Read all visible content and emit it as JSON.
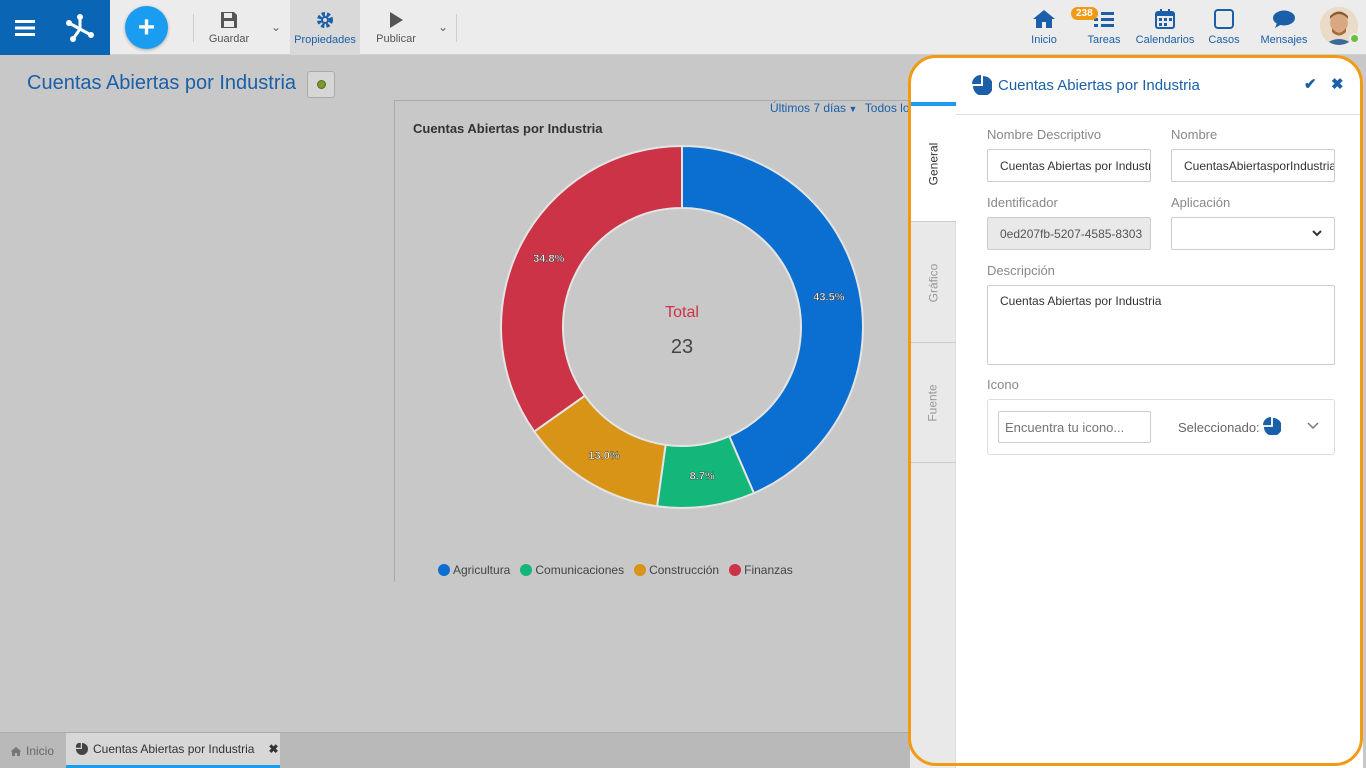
{
  "toolbar": {
    "save_label": "Guardar",
    "properties_label": "Propiedades",
    "publish_label": "Publicar"
  },
  "nav": {
    "home_label": "Inicio",
    "tasks_label": "Tareas",
    "tasks_badge": "238",
    "calendars_label": "Calendarios",
    "cases_label": "Casos",
    "messages_label": "Mensajes"
  },
  "page": {
    "title": "Cuentas Abiertas por Industria",
    "filter_period": "Últimos 7 días",
    "filter_scope": "Todos los"
  },
  "chart_data": {
    "type": "pie",
    "title": "Cuentas Abiertas por Industria",
    "center_label": "Total",
    "center_value": "23",
    "categories": [
      "Agricultura",
      "Comunicaciones",
      "Construcción",
      "Finanzas"
    ],
    "values": [
      43.5,
      8.7,
      13.0,
      34.8
    ],
    "value_labels": [
      "43.5%",
      "8.7%",
      "13.0%",
      "34.8%"
    ],
    "colors": [
      "#0a6fd0",
      "#13b77a",
      "#d79416",
      "#cc3347"
    ],
    "legend_position": "bottom"
  },
  "bottom_tabs": {
    "home_label": "Inicio",
    "active_label": "Cuentas Abiertas por Industria"
  },
  "properties": {
    "title": "Cuentas Abiertas por Industria",
    "tabs": [
      "General",
      "Gráfico",
      "Fuente"
    ],
    "descriptive_name_label": "Nombre Descriptivo",
    "descriptive_name_value": "Cuentas Abiertas por Industria",
    "name_label": "Nombre",
    "name_value": "CuentasAbiertasporIndustria",
    "identifier_label": "Identificador",
    "identifier_value": "0ed207fb-5207-4585-8303",
    "application_label": "Aplicación",
    "application_value": "",
    "description_label": "Descripción",
    "description_value": "Cuentas Abiertas por Industria",
    "icon_label": "Icono",
    "icon_search_placeholder": "Encuentra tu icono...",
    "icon_selected_label": "Seleccionado:"
  }
}
